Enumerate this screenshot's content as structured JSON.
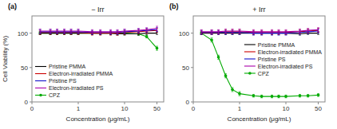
{
  "chart_data": [
    {
      "type": "line",
      "title": "− Irr",
      "x_label": "Concentration (μg/mL)",
      "y_label": "Cell Viability (%)",
      "annotations": [
        "(a)"
      ],
      "x": [
        0.15,
        0.25,
        0.35,
        0.5,
        0.7,
        1,
        2,
        3,
        5,
        7,
        10,
        20,
        30,
        50
      ],
      "series": [
        {
          "name": "Pristine PMMA",
          "color": "#000000",
          "values": [
            100,
            100,
            100,
            100,
            100,
            100,
            100,
            100,
            100,
            99,
            99,
            99,
            100,
            100
          ],
          "errors": [
            2,
            2,
            2,
            2,
            2,
            2,
            2,
            2,
            2,
            2,
            2,
            2,
            2,
            2
          ]
        },
        {
          "name": "Electron-irradiated PMMA",
          "color": "#cc0000",
          "values": [
            101,
            101,
            101,
            101,
            101,
            101,
            100,
            100,
            100,
            100,
            101,
            102,
            103,
            104
          ],
          "errors": [
            3,
            3,
            3,
            3,
            3,
            3,
            3,
            3,
            3,
            3,
            3,
            3,
            3,
            3
          ]
        },
        {
          "name": "Pristine PS",
          "color": "#1111cc",
          "values": [
            102,
            102,
            102,
            102,
            102,
            102,
            101,
            101,
            101,
            101,
            102,
            103,
            104,
            105
          ],
          "errors": [
            3,
            3,
            3,
            3,
            3,
            3,
            3,
            3,
            3,
            3,
            3,
            3,
            3,
            3
          ]
        },
        {
          "name": "Electron-irradiated PS",
          "color": "#aa00aa",
          "values": [
            103,
            103,
            103,
            103,
            103,
            103,
            102,
            102,
            102,
            102,
            103,
            104,
            105,
            107
          ],
          "errors": [
            3,
            3,
            3,
            3,
            3,
            3,
            3,
            3,
            3,
            3,
            3,
            3,
            3,
            3
          ]
        },
        {
          "name": "CPZ",
          "color": "#00aa00",
          "marker": "circle",
          "values": [
            100,
            100,
            100,
            100,
            100,
            100,
            100,
            100,
            100,
            100,
            100,
            99,
            95,
            78
          ],
          "errors": [
            2,
            2,
            2,
            2,
            2,
            2,
            2,
            2,
            2,
            2,
            2,
            2,
            2,
            3
          ]
        }
      ],
      "log": "x",
      "xlim": [
        0.1,
        70
      ],
      "xticks": [
        {
          "value": 0.1,
          "label": "0"
        },
        1,
        10,
        50
      ],
      "ylim": [
        0,
        125
      ],
      "yticks": [
        0,
        50,
        100
      ],
      "grid": false,
      "legend": "lower left"
    },
    {
      "type": "line",
      "title": "+ Irr",
      "x_label": "Concentration (μg/mL)",
      "annotations": [
        "(b)"
      ],
      "x": [
        0.15,
        0.25,
        0.35,
        0.5,
        0.7,
        1,
        2,
        3,
        5,
        7,
        10,
        20,
        30,
        50
      ],
      "series": [
        {
          "name": "Pristine PMMA",
          "color": "#000000",
          "values": [
            100,
            100,
            100,
            100,
            100,
            100,
            100,
            100,
            100,
            100,
            100,
            99,
            100,
            100
          ],
          "errors": [
            2,
            2,
            2,
            2,
            2,
            2,
            2,
            2,
            2,
            2,
            2,
            2,
            2,
            2
          ]
        },
        {
          "name": "Electron-irradiated PMMA",
          "color": "#cc0000",
          "values": [
            101,
            101,
            101,
            102,
            102,
            102,
            101,
            101,
            101,
            101,
            101,
            102,
            103,
            104
          ],
          "errors": [
            3,
            3,
            3,
            3,
            3,
            3,
            3,
            3,
            3,
            3,
            3,
            3,
            3,
            3
          ]
        },
        {
          "name": "Pristine PS",
          "color": "#1111cc",
          "values": [
            101,
            101,
            101,
            101,
            101,
            101,
            100,
            100,
            100,
            100,
            100,
            101,
            102,
            103
          ],
          "errors": [
            3,
            3,
            3,
            3,
            3,
            3,
            3,
            3,
            3,
            3,
            3,
            3,
            3,
            3
          ]
        },
        {
          "name": "Electron-irradiated PS",
          "color": "#aa00aa",
          "values": [
            102,
            102,
            102,
            103,
            103,
            103,
            102,
            102,
            102,
            102,
            102,
            103,
            104,
            105
          ],
          "errors": [
            3,
            3,
            3,
            3,
            3,
            3,
            3,
            3,
            3,
            3,
            3,
            3,
            3,
            3
          ]
        },
        {
          "name": "CPZ",
          "color": "#00aa00",
          "marker": "circle",
          "values": [
            100,
            90,
            65,
            38,
            18,
            12,
            9,
            8,
            8,
            8,
            8,
            9,
            9,
            10
          ],
          "errors": [
            2,
            3,
            3,
            3,
            3,
            3,
            2,
            2,
            2,
            2,
            2,
            2,
            2,
            2
          ]
        }
      ],
      "log": "x",
      "xlim": [
        0.1,
        70
      ],
      "xticks": [
        {
          "value": 0.1,
          "label": "0"
        },
        1,
        10,
        50
      ],
      "ylim": [
        0,
        125
      ],
      "yticks": [
        0,
        50,
        100
      ],
      "grid": false,
      "legend": "center right"
    }
  ]
}
